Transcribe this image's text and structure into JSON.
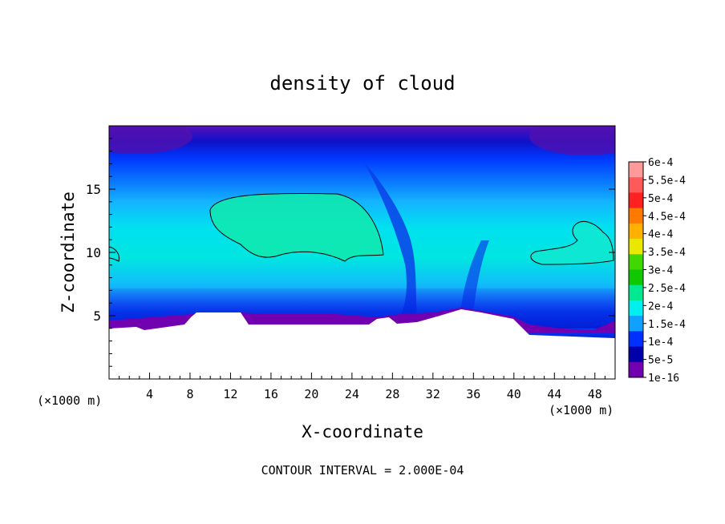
{
  "chart_data": {
    "type": "heatmap",
    "title": "density of cloud",
    "xlabel": "X-coordinate",
    "ylabel": "Z-coordinate",
    "x_unit_label_left": "(×1000 m)",
    "x_unit_label_right": "(×1000 m)",
    "footer": "CONTOUR INTERVAL = 2.000E-04",
    "xlim": [
      0,
      50
    ],
    "ylim": [
      0,
      20
    ],
    "x_ticks": [
      4,
      8,
      12,
      16,
      20,
      24,
      28,
      32,
      36,
      40,
      44,
      48
    ],
    "y_ticks": [
      5,
      10,
      15
    ],
    "colorbar_labels": [
      "6e-4",
      "5.5e-4",
      "5e-4",
      "4.5e-4",
      "4e-4",
      "3.5e-4",
      "3e-4",
      "2.5e-4",
      "2e-4",
      "1.5e-4",
      "1e-4",
      "5e-5",
      "1e-16"
    ],
    "colorbar_colors": [
      "#ff9a9a",
      "#ff5a5a",
      "#ff2020",
      "#ff7a00",
      "#ffb000",
      "#e8e800",
      "#40d800",
      "#10c800",
      "#00e890",
      "#00f0f0",
      "#10a0ff",
      "#0030ff",
      "#0000a8",
      "#7000b0"
    ],
    "contour_levels": [
      0.0002
    ],
    "field_description_rows": [
      {
        "z": 19.0,
        "x": [
          0,
          50
        ],
        "value": 2e-05
      },
      {
        "z": 17.0,
        "x": [
          0,
          50
        ],
        "value": 8e-05
      },
      {
        "z": 14.0,
        "x": [
          0,
          50
        ],
        "value": 0.00016
      },
      {
        "z": 12.0,
        "x": [
          0,
          50
        ],
        "value": 0.00019
      },
      {
        "z": 9.0,
        "x": [
          0,
          50
        ],
        "value": 0.00015
      },
      {
        "z": 6.0,
        "x": [
          0,
          50
        ],
        "value": 8e-05
      }
    ]
  }
}
